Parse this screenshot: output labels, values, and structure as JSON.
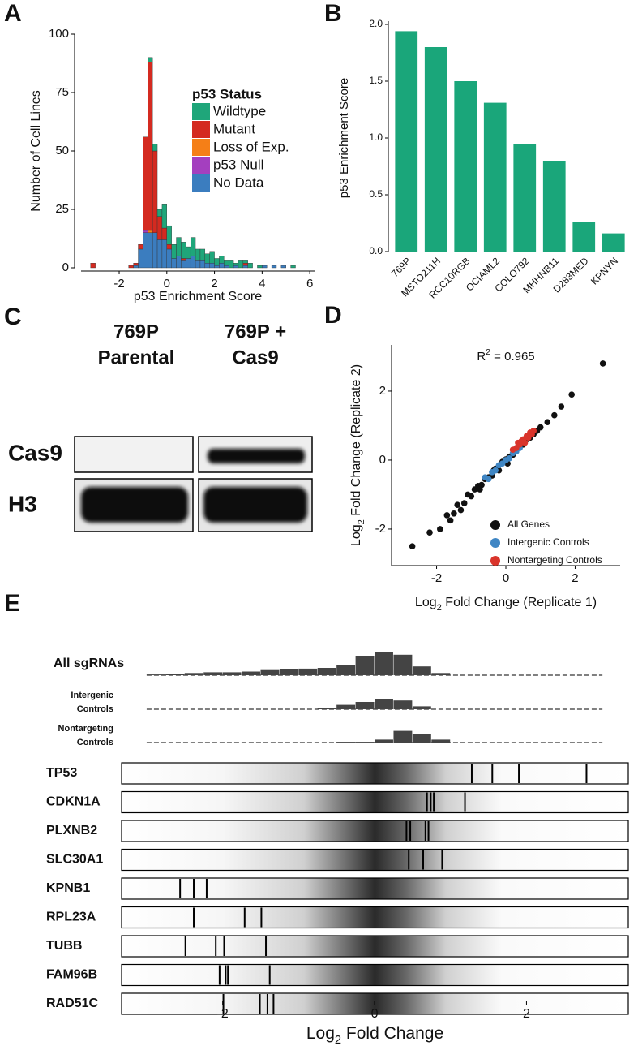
{
  "chart_data": [
    {
      "type": "histogram",
      "panel": "A",
      "xlabel": "p53 Enrichment Score",
      "ylabel": "Number of Cell Lines",
      "legend_title": "p53 Status",
      "bins": [
        -3.2,
        -3.0,
        -2.8,
        -2.6,
        -2.4,
        -2.2,
        -2.0,
        -1.8,
        -1.6,
        -1.4,
        -1.2,
        -1.0,
        -0.8,
        -0.6,
        -0.4,
        -0.2,
        0,
        0.2,
        0.4,
        0.6,
        0.8,
        1.0,
        1.2,
        1.4,
        1.6,
        1.8,
        2.0,
        2.2,
        2.4,
        2.6,
        2.8,
        3.0,
        3.2,
        3.4,
        3.6,
        3.8,
        4.0,
        4.2,
        4.4,
        4.6,
        4.8,
        5.0,
        5.2,
        5.4
      ],
      "series": [
        {
          "name": "Wildtype",
          "color": "#1fa67a",
          "values": [
            0,
            0,
            0,
            0,
            0,
            0,
            0,
            0,
            0,
            0,
            0,
            0,
            2,
            3,
            3,
            10,
            8,
            6,
            8,
            7,
            5,
            8,
            5,
            5,
            4,
            5,
            3,
            3,
            2,
            3,
            1,
            3,
            1,
            2,
            0,
            1,
            0,
            0,
            0,
            0,
            0,
            0,
            1
          ]
        },
        {
          "name": "Mutant",
          "color": "#d42a20",
          "values": [
            2,
            0,
            0,
            0,
            0,
            0,
            0,
            0,
            1,
            1,
            2,
            40,
            72,
            35,
            10,
            5,
            2,
            0,
            0,
            1,
            0,
            0,
            0,
            0,
            0,
            0,
            0,
            0,
            0,
            0,
            0,
            0,
            1,
            0,
            0,
            0,
            0,
            0,
            0,
            0,
            0,
            0,
            0
          ]
        },
        {
          "name": "Loss of Exp.",
          "color": "#f57f17",
          "values": [
            0,
            0,
            0,
            0,
            0,
            0,
            0,
            0,
            0,
            0,
            0,
            0,
            1,
            0,
            0,
            0,
            0,
            0,
            0,
            0,
            0,
            0,
            0,
            0,
            0,
            0,
            0,
            0,
            0,
            0,
            0,
            0,
            0,
            0,
            0,
            0,
            0,
            0,
            0,
            0,
            0,
            0,
            0
          ]
        },
        {
          "name": "p53 Null",
          "color": "#a43fbf",
          "values": [
            0,
            0,
            0,
            0,
            0,
            0,
            0,
            0,
            0,
            0,
            0,
            1,
            0,
            0,
            0,
            0,
            0,
            0,
            0,
            0,
            0,
            0,
            0,
            0,
            0,
            0,
            0,
            0,
            0,
            0,
            0,
            0,
            0,
            0,
            0,
            0,
            0,
            0,
            0,
            0,
            0,
            0,
            0
          ]
        },
        {
          "name": "No Data",
          "color": "#3b7dbf",
          "values": [
            0,
            0,
            0,
            0,
            0,
            0,
            0,
            0,
            0,
            1,
            8,
            15,
            15,
            15,
            12,
            12,
            8,
            4,
            5,
            3,
            4,
            5,
            3,
            3,
            2,
            2,
            1,
            2,
            1,
            0,
            1,
            0,
            1,
            0,
            0,
            0,
            1,
            0,
            1,
            0,
            1,
            0,
            0
          ]
        }
      ],
      "xlim": [
        -3.6,
        6.2
      ],
      "ylim": [
        0,
        100
      ],
      "xticks": [
        -2,
        0,
        2,
        4,
        6
      ],
      "yticks": [
        0,
        25,
        50,
        75,
        100
      ]
    },
    {
      "type": "bar",
      "panel": "B",
      "ylabel": "p53 Enrichment Score",
      "categories": [
        "769P",
        "MSTO211H",
        "RCC10RGB",
        "OCIAML2",
        "COLO792",
        "MHHNB11",
        "D283MED",
        "KPNYN"
      ],
      "values": [
        1.94,
        1.8,
        1.5,
        1.31,
        0.95,
        0.8,
        0.26,
        0.16
      ],
      "color": "#1aa67a",
      "ylim": [
        0,
        2
      ],
      "yticks": [
        {
          "value": 0,
          "label": "0.0"
        },
        0.5,
        {
          "value": 1,
          "label": "1.0"
        },
        1.5,
        {
          "value": 2,
          "label": "2.0"
        }
      ]
    },
    {
      "type": "scatter",
      "panel": "D",
      "annotation": {
        "pre": "R",
        "sup": "2",
        "post": " = 0.965"
      },
      "xlabel": {
        "pre": "Log",
        "sub": "2",
        "post": " Fold Change (Replicate 1)"
      },
      "ylabel": {
        "pre": "Log",
        "sub": "2",
        "post": " Fold Change (Replicate 2)"
      },
      "series": [
        {
          "name": "All Genes",
          "color": "#111111",
          "x": [
            -2.7,
            -2.2,
            -1.9,
            -1.7,
            -1.5,
            -1.4,
            -1.2,
            -1.1,
            -1.0,
            -0.9,
            -0.8,
            -0.7,
            -0.6,
            -0.5,
            -0.4,
            -0.3,
            -0.2,
            -0.1,
            0,
            0.1,
            0.2,
            0.3,
            0.4,
            0.5,
            0.6,
            0.7,
            0.8,
            0.9,
            1.0,
            1.2,
            1.4,
            1.6,
            1.9,
            2.8,
            -1.3,
            -0.75,
            -0.35,
            0.05,
            0.45,
            -1.6
          ],
          "values": [
            -2.5,
            -2.1,
            -2.0,
            -1.6,
            -1.55,
            -1.3,
            -1.25,
            -1.0,
            -1.05,
            -0.85,
            -0.75,
            -0.72,
            -0.55,
            -0.5,
            -0.45,
            -0.25,
            -0.3,
            -0.05,
            0.02,
            0.1,
            0.15,
            0.35,
            0.4,
            0.45,
            0.6,
            0.65,
            0.75,
            0.85,
            0.95,
            1.1,
            1.3,
            1.55,
            1.9,
            2.8,
            -1.45,
            -0.85,
            -0.3,
            -0.1,
            0.5,
            -1.75
          ]
        },
        {
          "name": "Intergenic Controls",
          "color": "#3f86c4",
          "x": [
            -0.6,
            -0.4,
            -0.3,
            -0.2,
            -0.1,
            0,
            0.1,
            0.2,
            0.3,
            0.4,
            0.5,
            -0.5
          ],
          "values": [
            -0.5,
            -0.35,
            -0.3,
            -0.15,
            -0.1,
            0,
            0.05,
            0.2,
            0.25,
            0.35,
            0.55,
            -0.55
          ]
        },
        {
          "name": "Nontargeting Controls",
          "color": "#d9342b",
          "x": [
            0.2,
            0.3,
            0.35,
            0.4,
            0.45,
            0.5,
            0.55,
            0.6,
            0.65,
            0.7,
            0.75,
            0.8
          ],
          "values": [
            0.3,
            0.35,
            0.5,
            0.45,
            0.55,
            0.6,
            0.5,
            0.7,
            0.65,
            0.8,
            0.75,
            0.85
          ]
        }
      ],
      "xlim": [
        -3.3,
        3.3
      ],
      "ylim": [
        -3.06,
        3.34
      ],
      "xticks": [
        -2,
        0,
        2
      ],
      "yticks": [
        -2,
        0,
        2
      ]
    },
    {
      "type": "strip",
      "panel": "E",
      "xlabel": {
        "pre": "Log",
        "sub": "2",
        "post": " Fold Change"
      },
      "bins": [
        -3,
        -2.75,
        -2.5,
        -2.25,
        -2,
        -1.75,
        -1.5,
        -1.25,
        -1,
        -0.75,
        -0.5,
        -0.25,
        0,
        0.25,
        0.5,
        0.75,
        1,
        1.25,
        1.5,
        1.75,
        2,
        2.25,
        2.5,
        2.75,
        3
      ],
      "tracks": [
        {
          "name": "All sgRNAs",
          "values": [
            1,
            2,
            3,
            4,
            4,
            5,
            7,
            8,
            9,
            10,
            14,
            26,
            32,
            28,
            12,
            3,
            0,
            0,
            0,
            0,
            0,
            0,
            0,
            0
          ]
        },
        {
          "name": [
            "Intergenic",
            "Controls"
          ],
          "values": [
            0,
            0,
            0,
            0,
            0,
            0,
            0,
            0,
            0,
            2,
            6,
            10,
            14,
            12,
            4,
            0,
            0,
            0,
            0,
            0,
            0,
            0,
            0,
            0
          ]
        },
        {
          "name": [
            "Nontargeting",
            "Controls"
          ],
          "values": [
            0,
            0,
            0,
            0,
            0,
            0,
            0,
            0,
            0,
            0,
            1,
            1,
            4,
            16,
            12,
            4,
            0,
            0,
            0,
            0,
            0,
            0,
            0,
            0
          ]
        }
      ],
      "rows": [
        {
          "name": "TP53",
          "values": [
            1.28,
            1.55,
            1.9,
            2.79
          ]
        },
        {
          "name": "CDKN1A",
          "values": [
            0.69,
            0.74,
            0.78,
            1.19
          ]
        },
        {
          "name": "PLXNB2",
          "values": [
            0.42,
            0.47,
            0.67,
            0.71
          ]
        },
        {
          "name": "SLC30A1",
          "values": [
            0.45,
            0.64,
            0.89
          ]
        },
        {
          "name": "KPNB1",
          "values": [
            -2.56,
            -2.38,
            -2.21
          ]
        },
        {
          "name": "RPL23A",
          "values": [
            -2.38,
            -1.71,
            -1.49
          ]
        },
        {
          "name": "TUBB",
          "values": [
            -2.49,
            -2.09,
            -1.98,
            -1.43
          ]
        },
        {
          "name": "FAM96B",
          "values": [
            -2.04,
            -1.96,
            -1.93,
            -1.38
          ]
        },
        {
          "name": "RAD51C",
          "values": [
            -1.99,
            -1.51,
            -1.41,
            -1.33
          ]
        }
      ],
      "xlim": [
        -3.33,
        3.34
      ],
      "xticks": [
        -2,
        0,
        2
      ]
    }
  ],
  "blot": {
    "panel": "C",
    "lanes": [
      [
        "769P",
        "Parental"
      ],
      [
        "769P +",
        "Cas9"
      ]
    ],
    "bands": [
      "Cas9",
      "H3"
    ]
  }
}
